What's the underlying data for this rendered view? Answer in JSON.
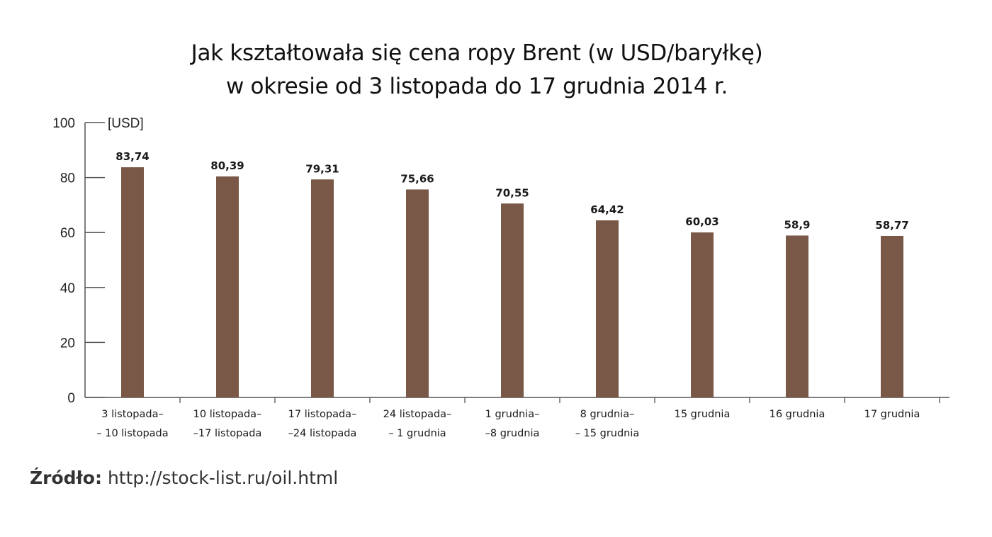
{
  "chart_data": {
    "type": "bar",
    "title": "Jak kształtowała się cena ropy Brent (w USD/baryłkę)",
    "subtitle": "w okresie od 3 listopada do 17 grudnia 2014 r.",
    "ylabel": "[USD]",
    "xlabel": "",
    "ylim": [
      0,
      100
    ],
    "yticks": [
      0,
      20,
      40,
      60,
      80,
      100
    ],
    "grid": false,
    "bar_color": "#7a5848",
    "categories": [
      [
        "3 listopada–",
        "– 10 listopada"
      ],
      [
        "10 listopada–",
        "–17 listopada"
      ],
      [
        "17 listopada–",
        "–24 listopada"
      ],
      [
        "24 listopada–",
        "– 1 grudnia"
      ],
      [
        "1 grudnia–",
        "–8 grudnia"
      ],
      [
        "8 grudnia–",
        "– 15 grudnia"
      ],
      [
        "15 grudnia"
      ],
      [
        "16 grudnia"
      ],
      [
        "17 grudnia"
      ]
    ],
    "values": [
      83.74,
      80.39,
      79.31,
      75.66,
      70.55,
      64.42,
      60.03,
      58.9,
      58.77
    ],
    "data_labels": [
      "83,74",
      "80,39",
      "79,31",
      "75,66",
      "70,55",
      "64,42",
      "60,03",
      "58,9",
      "58,77"
    ]
  },
  "source": {
    "label": "Źródło:",
    "url": "http://stock-list.ru/oil.html"
  }
}
